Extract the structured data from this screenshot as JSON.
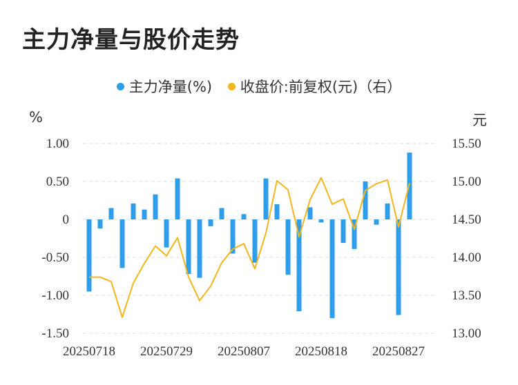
{
  "title": "主力净量与股价走势",
  "legend": {
    "bar_label": "主力净量(%)",
    "line_label": "收盘价:前复权(元)（右）"
  },
  "units": {
    "left": "%",
    "right": "元"
  },
  "colors": {
    "bar": "#2f9ee8",
    "line": "#f2b61b",
    "grid": "#dddddd"
  },
  "chart_data": {
    "type": "bar",
    "x_tick_labels": [
      "20250718",
      "20250729",
      "20250807",
      "20250818",
      "20250827"
    ],
    "x_tick_indices": [
      0,
      7,
      14,
      21,
      28
    ],
    "yleft": {
      "ticks": [
        1.0,
        0.5,
        0,
        -0.5,
        -1.0,
        -1.5
      ],
      "labels": [
        "1.00",
        "0.50",
        "0",
        "-0.50",
        "-1.00",
        "-1.50"
      ],
      "ylim": [
        -1.5,
        1.0
      ]
    },
    "yright": {
      "ticks": [
        15.5,
        15.0,
        14.5,
        14.0,
        13.5,
        13.0
      ],
      "labels": [
        "15.50",
        "15.00",
        "14.50",
        "14.00",
        "13.50",
        "13.00"
      ],
      "ylim": [
        13.0,
        15.5
      ]
    },
    "grid": true,
    "series": [
      {
        "name": "主力净量(%)",
        "type": "bar",
        "axis": "left",
        "values": [
          -0.95,
          -0.12,
          0.15,
          -0.64,
          0.21,
          0.13,
          0.33,
          -0.37,
          0.54,
          -0.72,
          -0.77,
          -0.09,
          0.15,
          -0.45,
          0.07,
          -0.57,
          0.54,
          0.2,
          -0.73,
          -1.21,
          0.16,
          -0.04,
          -1.3,
          -0.31,
          -0.39,
          0.5,
          -0.07,
          0.21,
          -1.26,
          0.88
        ]
      },
      {
        "name": "收盘价:前复权(元)（右）",
        "type": "line",
        "axis": "right",
        "values": [
          13.74,
          13.74,
          13.68,
          13.21,
          13.66,
          13.92,
          14.15,
          14.02,
          14.26,
          13.74,
          13.43,
          13.62,
          13.93,
          14.11,
          14.18,
          13.85,
          14.32,
          15.01,
          14.89,
          14.27,
          14.76,
          15.05,
          14.7,
          14.77,
          14.37,
          14.88,
          14.97,
          15.02,
          14.4,
          14.98
        ]
      }
    ]
  }
}
